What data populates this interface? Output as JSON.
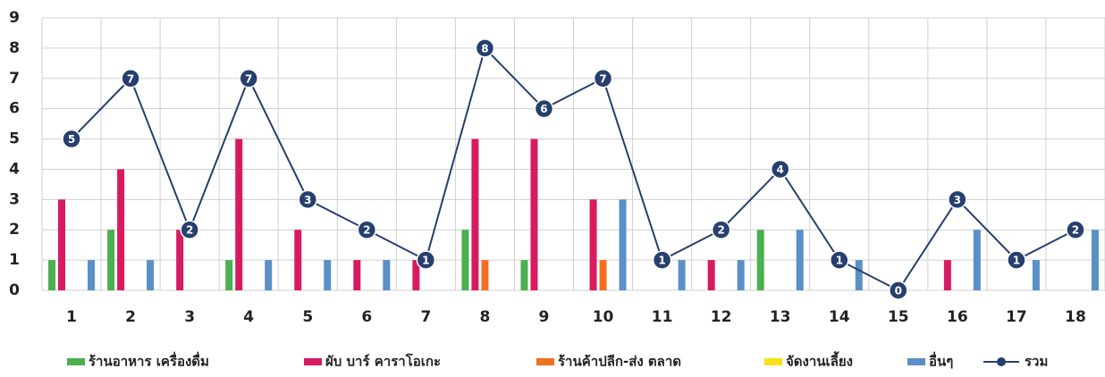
{
  "chart_data": {
    "type": "bar",
    "categories": [
      "1",
      "2",
      "3",
      "4",
      "5",
      "6",
      "7",
      "8",
      "9",
      "10",
      "11",
      "12",
      "13",
      "14",
      "15",
      "16",
      "17",
      "18"
    ],
    "series": [
      {
        "name": "ร้านอาหาร เครื่องดื่ม",
        "color": "#4caf50",
        "values": [
          1,
          2,
          0,
          1,
          0,
          0,
          0,
          2,
          1,
          0,
          0,
          0,
          2,
          0,
          0,
          0,
          0,
          0
        ]
      },
      {
        "name": "ผับ บาร์ คาราโอเกะ",
        "color": "#d81b60",
        "values": [
          3,
          4,
          2,
          5,
          2,
          1,
          1,
          5,
          5,
          3,
          0,
          1,
          0,
          0,
          0,
          1,
          0,
          0
        ]
      },
      {
        "name": "ร้านค้าปลีก-ส่ง ตลาด",
        "color": "#f07020",
        "values": [
          0,
          0,
          0,
          0,
          0,
          0,
          0,
          1,
          0,
          1,
          0,
          0,
          0,
          0,
          0,
          0,
          0,
          0
        ]
      },
      {
        "name": "จัดงานเลี้ยง",
        "color": "#f5e11a",
        "values": [
          0,
          0,
          0,
          0,
          0,
          0,
          0,
          0,
          0,
          0,
          0,
          0,
          0,
          0,
          0,
          0,
          0,
          0
        ]
      },
      {
        "name": "อื่นๆ",
        "color": "#5b8fc7",
        "values": [
          1,
          1,
          0,
          1,
          1,
          1,
          0,
          0,
          0,
          3,
          1,
          1,
          2,
          1,
          0,
          2,
          1,
          2
        ]
      },
      {
        "name": "รวม",
        "type": "line",
        "color": "#263f6e",
        "values": [
          5,
          7,
          2,
          7,
          3,
          2,
          1,
          8,
          6,
          7,
          1,
          2,
          4,
          1,
          0,
          3,
          1,
          2
        ]
      }
    ],
    "ylim": [
      0,
      9
    ],
    "yticks": [
      0,
      1,
      2,
      3,
      4,
      5,
      6,
      7,
      8,
      9
    ],
    "grid": true,
    "legend": "bottom"
  }
}
